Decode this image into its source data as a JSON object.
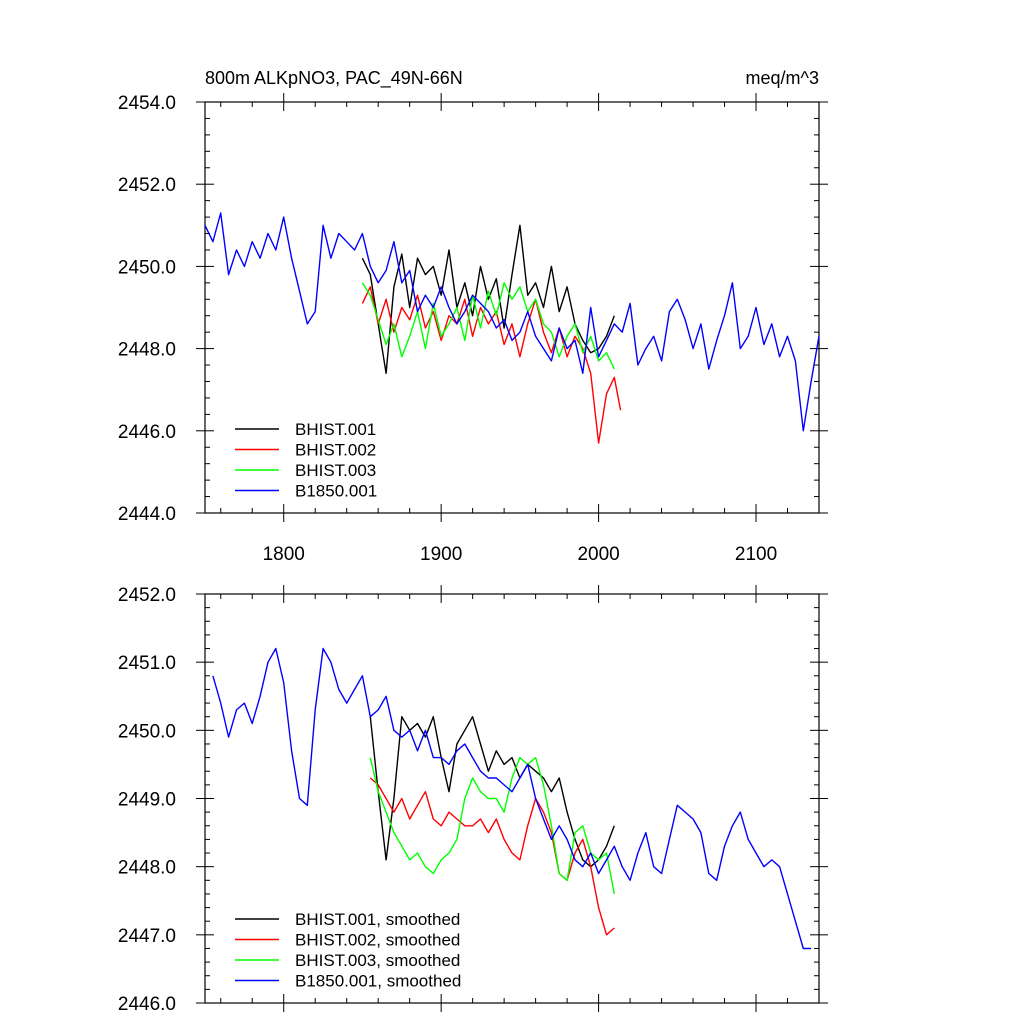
{
  "chart_data": [
    {
      "type": "line",
      "title": "800m ALKpNO3, PAC_49N-66N",
      "units": "meq/m^3",
      "xlim": [
        1750,
        2140
      ],
      "ylim": [
        2444.0,
        2454.0
      ],
      "xticks": [
        1800,
        1900,
        2000,
        2100
      ],
      "yticks": [
        2444.0,
        2446.0,
        2448.0,
        2450.0,
        2452.0,
        2454.0
      ],
      "ytick_labels": [
        "2444.0",
        "2446.0",
        "2448.0",
        "2450.0",
        "2452.0",
        "2454.0"
      ],
      "xtick_labels": [
        "1800",
        "1900",
        "2000",
        "2100"
      ],
      "legend_position": "bottom-left",
      "series": [
        {
          "name": "BHIST.001",
          "color": "#000000",
          "x": [
            1850,
            1855,
            1860,
            1865,
            1870,
            1875,
            1880,
            1885,
            1890,
            1895,
            1900,
            1905,
            1910,
            1915,
            1920,
            1925,
            1930,
            1935,
            1940,
            1945,
            1950,
            1955,
            1960,
            1965,
            1970,
            1975,
            1980,
            1985,
            1990,
            1995,
            2000,
            2005,
            2010
          ],
          "y": [
            2450.2,
            2449.8,
            2448.6,
            2447.4,
            2449.5,
            2450.3,
            2449.0,
            2450.2,
            2449.8,
            2450.0,
            2449.3,
            2450.4,
            2449.0,
            2449.6,
            2448.8,
            2450.0,
            2449.2,
            2449.7,
            2448.5,
            2449.8,
            2451.0,
            2449.3,
            2449.6,
            2449.0,
            2450.0,
            2448.9,
            2449.5,
            2448.6,
            2448.2,
            2447.9,
            2448.0,
            2448.3,
            2448.8
          ]
        },
        {
          "name": "BHIST.002",
          "color": "#ff0000",
          "x": [
            1850,
            1855,
            1860,
            1865,
            1870,
            1875,
            1880,
            1885,
            1890,
            1895,
            1900,
            1905,
            1910,
            1915,
            1920,
            1925,
            1930,
            1935,
            1940,
            1945,
            1950,
            1955,
            1960,
            1965,
            1970,
            1975,
            1980,
            1985,
            1990,
            1995,
            2000,
            2005,
            2010,
            2014
          ],
          "y": [
            2449.1,
            2449.5,
            2448.6,
            2449.2,
            2448.4,
            2449.0,
            2448.7,
            2449.3,
            2448.5,
            2448.9,
            2448.2,
            2448.8,
            2448.6,
            2449.2,
            2448.3,
            2449.0,
            2448.6,
            2448.9,
            2448.1,
            2448.6,
            2447.8,
            2448.6,
            2449.2,
            2448.4,
            2447.9,
            2448.5,
            2447.8,
            2448.3,
            2448.0,
            2447.4,
            2445.7,
            2446.9,
            2447.3,
            2446.5
          ]
        },
        {
          "name": "BHIST.003",
          "color": "#00ff00",
          "x": [
            1850,
            1855,
            1860,
            1865,
            1870,
            1875,
            1880,
            1885,
            1890,
            1895,
            1900,
            1905,
            1910,
            1915,
            1920,
            1925,
            1930,
            1935,
            1940,
            1945,
            1950,
            1955,
            1960,
            1965,
            1970,
            1975,
            1980,
            1985,
            1990,
            1995,
            2000,
            2005,
            2010
          ],
          "y": [
            2449.6,
            2449.3,
            2448.7,
            2448.1,
            2448.6,
            2447.8,
            2448.3,
            2448.9,
            2448.0,
            2449.1,
            2448.3,
            2448.6,
            2449.0,
            2448.2,
            2449.3,
            2448.5,
            2449.4,
            2448.8,
            2449.6,
            2449.2,
            2449.5,
            2448.9,
            2449.2,
            2448.6,
            2448.4,
            2447.8,
            2448.3,
            2448.6,
            2447.9,
            2448.3,
            2447.7,
            2447.9,
            2447.5
          ]
        },
        {
          "name": "B1850.001",
          "color": "#0000ff",
          "x": [
            1750,
            1755,
            1760,
            1765,
            1770,
            1775,
            1780,
            1785,
            1790,
            1795,
            1800,
            1805,
            1810,
            1815,
            1820,
            1825,
            1830,
            1835,
            1840,
            1845,
            1850,
            1855,
            1860,
            1865,
            1870,
            1875,
            1880,
            1885,
            1890,
            1895,
            1900,
            1905,
            1910,
            1915,
            1920,
            1925,
            1930,
            1935,
            1940,
            1945,
            1950,
            1955,
            1960,
            1965,
            1970,
            1975,
            1980,
            1985,
            1990,
            1995,
            2000,
            2005,
            2010,
            2015,
            2020,
            2025,
            2030,
            2035,
            2040,
            2045,
            2050,
            2055,
            2060,
            2065,
            2070,
            2075,
            2080,
            2085,
            2090,
            2095,
            2100,
            2105,
            2110,
            2115,
            2120,
            2125,
            2130,
            2135,
            2140
          ],
          "y": [
            2451.0,
            2450.6,
            2451.3,
            2449.8,
            2450.4,
            2450.0,
            2450.6,
            2450.2,
            2450.8,
            2450.4,
            2451.2,
            2450.2,
            2449.4,
            2448.6,
            2448.9,
            2451.0,
            2450.2,
            2450.8,
            2450.6,
            2450.4,
            2450.8,
            2450.0,
            2449.6,
            2449.9,
            2450.6,
            2449.6,
            2449.9,
            2448.9,
            2449.3,
            2449.0,
            2449.5,
            2449.0,
            2448.6,
            2448.9,
            2449.3,
            2449.1,
            2448.9,
            2448.5,
            2448.7,
            2448.2,
            2448.4,
            2448.9,
            2448.3,
            2448.0,
            2447.7,
            2448.5,
            2448.0,
            2448.2,
            2447.4,
            2449.0,
            2447.8,
            2448.2,
            2448.6,
            2448.4,
            2449.1,
            2447.6,
            2448.0,
            2448.3,
            2447.7,
            2448.9,
            2449.2,
            2448.7,
            2448.0,
            2448.6,
            2447.5,
            2448.2,
            2448.8,
            2449.6,
            2448.0,
            2448.3,
            2449.0,
            2448.1,
            2448.6,
            2447.8,
            2448.3,
            2447.7,
            2446.0,
            2447.2,
            2448.3
          ]
        }
      ]
    },
    {
      "type": "line",
      "xlim": [
        1750,
        2140
      ],
      "ylim": [
        2446.0,
        2452.0
      ],
      "xticks": [
        1800,
        1900,
        2000,
        2100
      ],
      "yticks": [
        2446.0,
        2447.0,
        2448.0,
        2449.0,
        2450.0,
        2451.0,
        2452.0
      ],
      "ytick_labels": [
        "2446.0",
        "2447.0",
        "2448.0",
        "2449.0",
        "2450.0",
        "2451.0",
        "2452.0"
      ],
      "legend_position": "bottom-left",
      "series": [
        {
          "name": "BHIST.001, smoothed",
          "color": "#000000",
          "x": [
            1855,
            1860,
            1865,
            1870,
            1875,
            1880,
            1885,
            1890,
            1895,
            1900,
            1905,
            1910,
            1915,
            1920,
            1925,
            1930,
            1935,
            1940,
            1945,
            1950,
            1955,
            1960,
            1965,
            1970,
            1975,
            1980,
            1985,
            1990,
            1995,
            2000,
            2005,
            2010
          ],
          "y": [
            2450.2,
            2449.1,
            2448.1,
            2449.0,
            2450.2,
            2450.0,
            2450.1,
            2449.9,
            2450.2,
            2449.6,
            2449.1,
            2449.8,
            2450.0,
            2450.2,
            2449.8,
            2449.4,
            2449.7,
            2449.5,
            2449.6,
            2449.3,
            2449.5,
            2449.4,
            2449.3,
            2449.1,
            2449.3,
            2448.8,
            2448.4,
            2448.1,
            2448.0,
            2448.1,
            2448.3,
            2448.6
          ]
        },
        {
          "name": "BHIST.002, smoothed",
          "color": "#ff0000",
          "x": [
            1855,
            1860,
            1865,
            1870,
            1875,
            1880,
            1885,
            1890,
            1895,
            1900,
            1905,
            1910,
            1915,
            1920,
            1925,
            1930,
            1935,
            1940,
            1945,
            1950,
            1955,
            1960,
            1965,
            1970,
            1975,
            1980,
            1985,
            1990,
            1995,
            2000,
            2005,
            2010
          ],
          "y": [
            2449.3,
            2449.2,
            2449.0,
            2448.8,
            2449.0,
            2448.7,
            2448.9,
            2449.1,
            2448.7,
            2448.6,
            2448.8,
            2448.7,
            2448.6,
            2448.6,
            2448.7,
            2448.5,
            2448.7,
            2448.4,
            2448.2,
            2448.1,
            2448.6,
            2449.0,
            2448.8,
            2448.5,
            2447.9,
            2447.8,
            2448.2,
            2448.4,
            2448.0,
            2447.4,
            2447.0,
            2447.1
          ]
        },
        {
          "name": "BHIST.003, smoothed",
          "color": "#00ff00",
          "x": [
            1855,
            1860,
            1865,
            1870,
            1875,
            1880,
            1885,
            1890,
            1895,
            1900,
            1905,
            1910,
            1915,
            1920,
            1925,
            1930,
            1935,
            1940,
            1945,
            1950,
            1955,
            1960,
            1965,
            1970,
            1975,
            1980,
            1985,
            1990,
            1995,
            2000,
            2005,
            2010
          ],
          "y": [
            2449.6,
            2449.1,
            2448.8,
            2448.5,
            2448.3,
            2448.1,
            2448.2,
            2448.0,
            2447.9,
            2448.1,
            2448.2,
            2448.4,
            2449.0,
            2449.3,
            2449.1,
            2449.0,
            2449.0,
            2448.8,
            2449.3,
            2449.6,
            2449.5,
            2449.6,
            2449.2,
            2448.6,
            2447.9,
            2447.8,
            2448.5,
            2448.6,
            2448.2,
            2448.1,
            2448.2,
            2447.6
          ]
        },
        {
          "name": "B1850.001, smoothed",
          "color": "#0000ff",
          "x": [
            1755,
            1760,
            1765,
            1770,
            1775,
            1780,
            1785,
            1790,
            1795,
            1800,
            1805,
            1810,
            1815,
            1820,
            1825,
            1830,
            1835,
            1840,
            1845,
            1850,
            1855,
            1860,
            1865,
            1870,
            1875,
            1880,
            1885,
            1890,
            1895,
            1900,
            1905,
            1910,
            1915,
            1920,
            1925,
            1930,
            1935,
            1940,
            1945,
            1950,
            1955,
            1960,
            1965,
            1970,
            1975,
            1980,
            1985,
            1990,
            1995,
            2000,
            2005,
            2010,
            2015,
            2020,
            2025,
            2030,
            2035,
            2040,
            2045,
            2050,
            2055,
            2060,
            2065,
            2070,
            2075,
            2080,
            2085,
            2090,
            2095,
            2100,
            2105,
            2110,
            2115,
            2120,
            2125,
            2130,
            2135
          ],
          "y": [
            2450.8,
            2450.4,
            2449.9,
            2450.3,
            2450.4,
            2450.1,
            2450.5,
            2451.0,
            2451.2,
            2450.7,
            2449.7,
            2449.0,
            2448.9,
            2450.3,
            2451.2,
            2451.0,
            2450.6,
            2450.4,
            2450.6,
            2450.8,
            2450.2,
            2450.3,
            2450.5,
            2450.0,
            2449.9,
            2450.0,
            2449.7,
            2450.0,
            2449.6,
            2449.6,
            2449.5,
            2449.7,
            2449.8,
            2449.6,
            2449.4,
            2449.3,
            2449.3,
            2449.2,
            2449.1,
            2449.3,
            2449.5,
            2449.0,
            2448.7,
            2448.4,
            2448.6,
            2448.4,
            2448.1,
            2448.0,
            2448.2,
            2447.9,
            2448.1,
            2448.3,
            2448.0,
            2447.8,
            2448.2,
            2448.5,
            2448.0,
            2447.9,
            2448.4,
            2448.9,
            2448.8,
            2448.7,
            2448.5,
            2447.9,
            2447.8,
            2448.3,
            2448.6,
            2448.8,
            2448.4,
            2448.2,
            2448.0,
            2448.1,
            2448.0,
            2447.6,
            2447.2,
            2446.8,
            2446.8
          ]
        }
      ]
    }
  ]
}
